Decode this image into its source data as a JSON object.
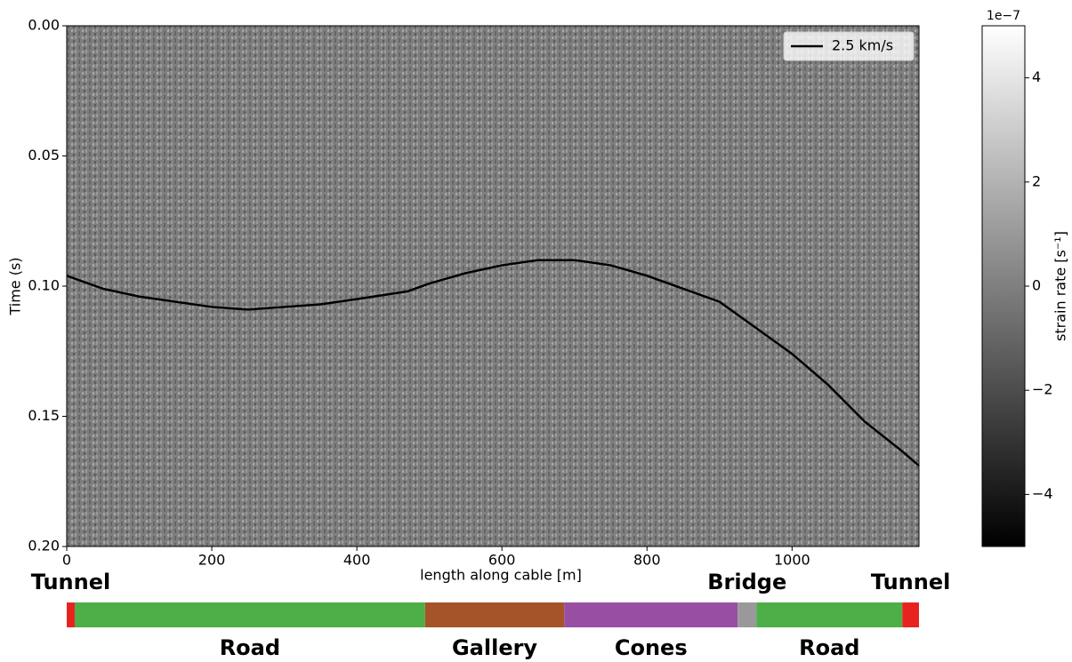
{
  "chart_data": {
    "type": "line",
    "xlabel": "length along cable [m]",
    "ylabel": "Time (s)",
    "xlim": [
      0,
      1175
    ],
    "ylim": [
      0,
      0.2
    ],
    "y_inverted": true,
    "xticks": [
      0,
      200,
      400,
      600,
      800,
      1000
    ],
    "yticks": [
      {
        "value": 0,
        "label": "0.00"
      },
      0.05,
      {
        "value": 0.1,
        "label": "0.10"
      },
      0.15,
      {
        "value": 0.2,
        "label": "0.20"
      }
    ],
    "legend": "upper right",
    "x": [
      0,
      50,
      100,
      200,
      250,
      300,
      350,
      400,
      470,
      500,
      550,
      600,
      650,
      700,
      750,
      800,
      850,
      900,
      950,
      1000,
      1050,
      1100,
      1150,
      1175
    ],
    "series": [
      {
        "name": "2.5 km/s",
        "color": "#000000",
        "values": [
          0.096,
          0.101,
          0.104,
          0.108,
          0.109,
          0.108,
          0.107,
          0.105,
          0.102,
          0.099,
          0.095,
          0.092,
          0.09,
          0.09,
          0.092,
          0.096,
          0.101,
          0.106,
          0.116,
          0.126,
          0.138,
          0.152,
          0.163,
          0.169
        ]
      }
    ],
    "colorbar": {
      "label": "strain rate [s⁻¹]",
      "offset_text": "1e−7",
      "clim": [
        -5,
        5
      ],
      "ticks": [
        {
          "value": -4,
          "label": "−4"
        },
        {
          "value": -2,
          "label": "−2"
        },
        0,
        2,
        4
      ],
      "cmap": [
        "#000000",
        "#ffffff"
      ]
    },
    "segments": [
      {
        "label": "Tunnel",
        "start": 0,
        "end": 11,
        "color": "#e8231f"
      },
      {
        "label": "Road",
        "start": 11,
        "end": 494,
        "color": "#4caf47"
      },
      {
        "label": "Gallery",
        "start": 494,
        "end": 686,
        "color": "#a5542a"
      },
      {
        "label": "Cones",
        "start": 686,
        "end": 925,
        "color": "#984ea3"
      },
      {
        "label": "Bridge",
        "start": 925,
        "end": 951,
        "color": "#999999"
      },
      {
        "label": "Road",
        "start": 951,
        "end": 1152,
        "color": "#4caf47"
      },
      {
        "label": "Tunnel",
        "start": 1152,
        "end": 1175,
        "color": "#e8231f"
      }
    ]
  }
}
